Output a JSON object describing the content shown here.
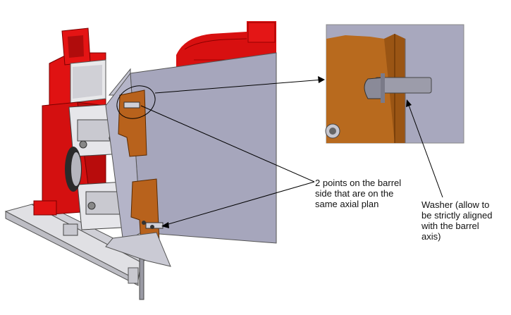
{
  "callouts": {
    "barrel_points": {
      "lines": [
        "2 points on the barrel",
        "side that are on the",
        "same axial plan"
      ]
    },
    "washer": {
      "lines": [
        "Washer (allow to",
        "be strictly aligned",
        "with the barrel",
        "axis)"
      ]
    }
  },
  "colors": {
    "machine_red": "#e01010",
    "barrel_grey": "#a8a8be",
    "flange_brown": "#b8621c",
    "washer_grey": "#9a9aa8",
    "base_grey": "#d8d8dc",
    "line_black": "#000000"
  }
}
